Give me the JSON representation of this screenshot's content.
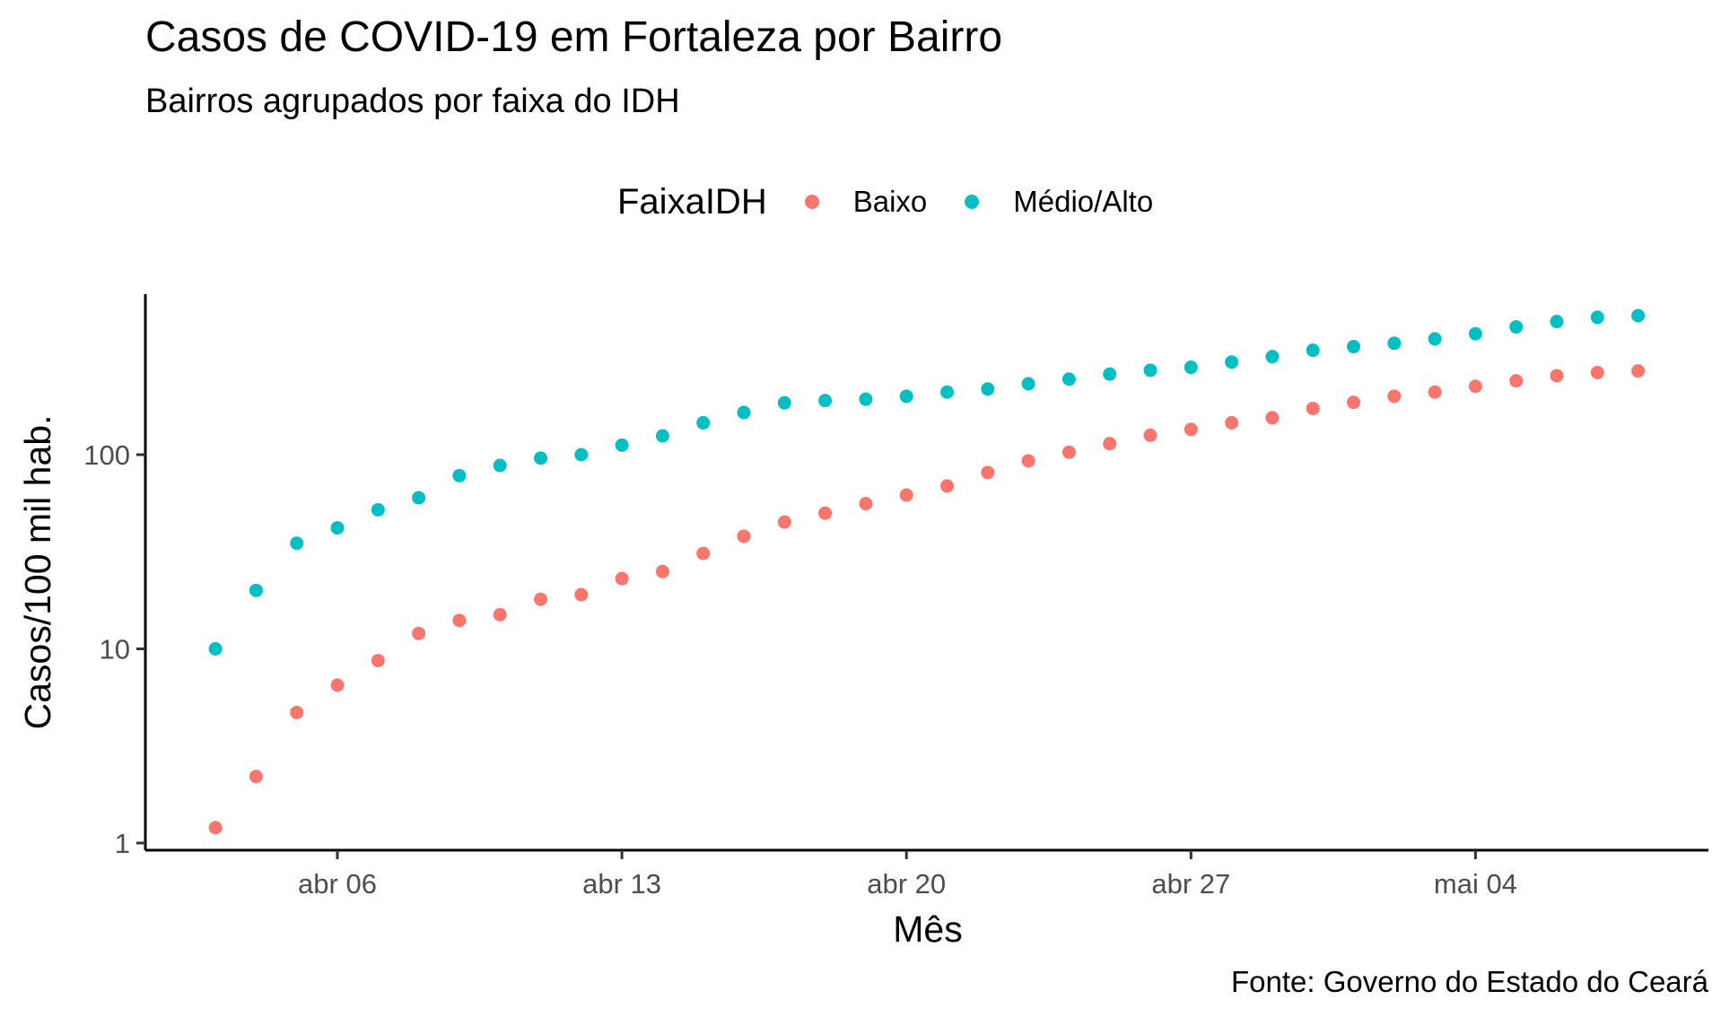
{
  "chart_data": {
    "type": "scatter",
    "title": "Casos de COVID-19 em Fortaleza por Bairro",
    "subtitle": "Bairros agrupados por faixa do IDH",
    "caption": "Fonte: Governo do Estado do Ceará",
    "xlabel": "Mês",
    "ylabel": "Casos/100 mil hab.",
    "yscale": "log10",
    "ylim": [
      1,
      600
    ],
    "xlim": [
      "2020-04-01",
      "2020-05-10"
    ],
    "grid": false,
    "legend_position": "top",
    "legend_title": "FaixaIDH",
    "x_ticks": [
      {
        "date": "2020-04-06",
        "label": "abr 06"
      },
      {
        "date": "2020-04-13",
        "label": "abr 13"
      },
      {
        "date": "2020-04-20",
        "label": "abr 20"
      },
      {
        "date": "2020-04-27",
        "label": "abr 27"
      },
      {
        "date": "2020-05-04",
        "label": "mai 04"
      }
    ],
    "y_ticks": [
      {
        "value": 1,
        "label": "1"
      },
      {
        "value": 10,
        "label": "10"
      },
      {
        "value": 100,
        "label": "100"
      }
    ],
    "x": [
      "2020-04-03",
      "2020-04-04",
      "2020-04-05",
      "2020-04-06",
      "2020-04-07",
      "2020-04-08",
      "2020-04-09",
      "2020-04-10",
      "2020-04-11",
      "2020-04-12",
      "2020-04-13",
      "2020-04-14",
      "2020-04-15",
      "2020-04-16",
      "2020-04-17",
      "2020-04-18",
      "2020-04-19",
      "2020-04-20",
      "2020-04-21",
      "2020-04-22",
      "2020-04-23",
      "2020-04-24",
      "2020-04-25",
      "2020-04-26",
      "2020-04-27",
      "2020-04-28",
      "2020-04-29",
      "2020-04-30",
      "2020-05-01",
      "2020-05-02",
      "2020-05-03",
      "2020-05-04",
      "2020-05-05",
      "2020-05-06",
      "2020-05-07",
      "2020-05-08"
    ],
    "series": [
      {
        "name": "Baixo",
        "color": "#F8766D",
        "values": [
          1.2,
          2.2,
          4.7,
          6.5,
          8.7,
          12,
          14,
          15,
          18,
          19,
          23,
          25,
          31,
          38,
          45,
          50,
          56,
          62,
          69,
          81,
          93,
          103,
          114,
          126,
          135,
          146,
          155,
          173,
          186,
          200,
          210,
          225,
          240,
          255,
          265,
          270
        ]
      },
      {
        "name": "Médio/Alto",
        "color": "#00BFC4",
        "values": [
          10,
          20,
          35,
          42,
          52,
          60,
          78,
          88,
          96,
          100,
          112,
          125,
          146,
          165,
          185,
          190,
          193,
          200,
          210,
          218,
          232,
          245,
          260,
          272,
          282,
          300,
          320,
          345,
          360,
          375,
          395,
          420,
          455,
          485,
          510,
          520
        ]
      }
    ]
  }
}
